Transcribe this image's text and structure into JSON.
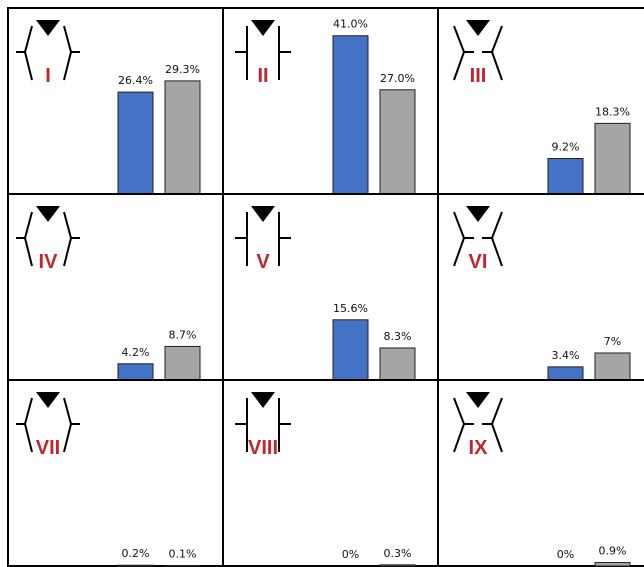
{
  "chart_data": [
    {
      "type": "bar",
      "title": "I",
      "values": [
        26.4,
        29.3
      ],
      "value_labels": [
        "26.4%",
        "29.3%"
      ],
      "colors": [
        "#4472c4",
        "#a5a5a5"
      ]
    },
    {
      "type": "bar",
      "title": "II",
      "values": [
        41.0,
        27.0
      ],
      "value_labels": [
        "41.0%",
        "27.0%"
      ],
      "colors": [
        "#4472c4",
        "#a5a5a5"
      ]
    },
    {
      "type": "bar",
      "title": "III",
      "values": [
        9.2,
        18.3
      ],
      "value_labels": [
        "9.2%",
        "18.3%"
      ],
      "colors": [
        "#4472c4",
        "#a5a5a5"
      ]
    },
    {
      "type": "bar",
      "title": "IV",
      "values": [
        4.2,
        8.7
      ],
      "value_labels": [
        "4.2%",
        "8.7%"
      ],
      "colors": [
        "#4472c4",
        "#a5a5a5"
      ]
    },
    {
      "type": "bar",
      "title": "V",
      "values": [
        15.6,
        8.3
      ],
      "value_labels": [
        "15.6%",
        "8.3%"
      ],
      "colors": [
        "#4472c4",
        "#a5a5a5"
      ]
    },
    {
      "type": "bar",
      "title": "VI",
      "values": [
        3.4,
        7
      ],
      "value_labels": [
        "3.4%",
        "7%"
      ],
      "colors": [
        "#4472c4",
        "#a5a5a5"
      ]
    },
    {
      "type": "bar",
      "title": "VII",
      "values": [
        0.2,
        0.1
      ],
      "value_labels": [
        "0.2%",
        "0.1%"
      ],
      "colors": [
        "#4472c4",
        "#a5a5a5"
      ]
    },
    {
      "type": "bar",
      "title": "VIII",
      "values": [
        0,
        0.3
      ],
      "value_labels": [
        "0%",
        "0.3%"
      ],
      "colors": [
        "#4472c4",
        "#a5a5a5"
      ]
    },
    {
      "type": "bar",
      "title": "IX",
      "values": [
        0,
        0.9
      ],
      "value_labels": [
        "0%",
        "0.9%"
      ],
      "colors": [
        "#4472c4",
        "#a5a5a5"
      ]
    }
  ]
}
